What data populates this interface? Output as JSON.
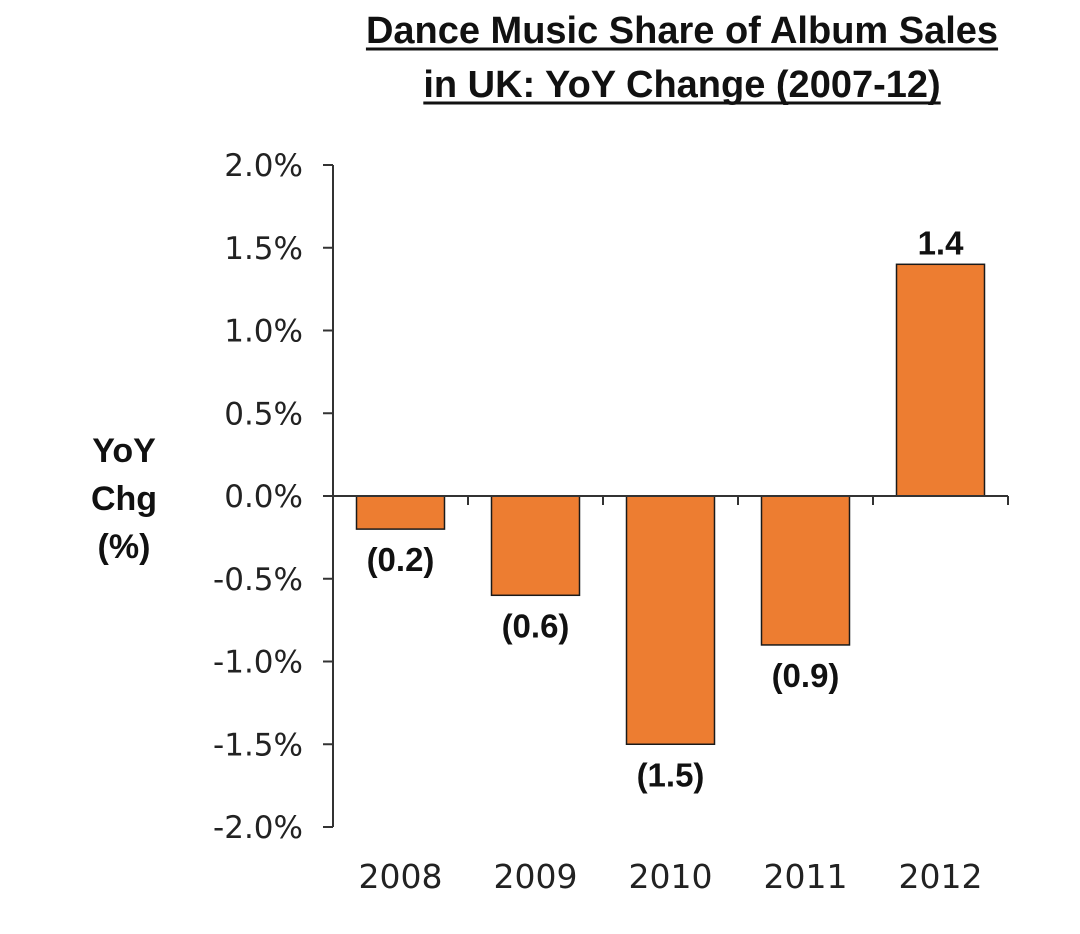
{
  "chart_data": {
    "type": "bar",
    "title": [
      "Dance Music Share of Album Sales",
      "in UK: YoY Change (2007-12)"
    ],
    "ylabel": [
      "YoY",
      "Chg",
      "(%)"
    ],
    "xlabel": "",
    "categories": [
      "2008",
      "2009",
      "2010",
      "2011",
      "2012"
    ],
    "values": [
      -0.2,
      -0.6,
      -1.5,
      -0.9,
      1.4
    ],
    "data_labels": [
      "(0.2)",
      "(0.6)",
      "(1.5)",
      "(0.9)",
      "1.4"
    ],
    "ylim": [
      -2.0,
      2.0
    ],
    "y_ticks": [
      2.0,
      1.5,
      1.0,
      0.5,
      0.0,
      -0.5,
      -1.0,
      -1.5,
      -2.0
    ],
    "y_tick_labels": [
      "2.0%",
      "1.5%",
      "1.0%",
      "0.5%",
      "0.0%",
      "-0.5%",
      "-1.0%",
      "-1.5%",
      "-2.0%"
    ],
    "grid": false,
    "legend": "none",
    "colors": {
      "bar": "#ED7D31",
      "bar_edge": "#1a1a1a",
      "axis": "#333333",
      "text": "#111111"
    }
  }
}
